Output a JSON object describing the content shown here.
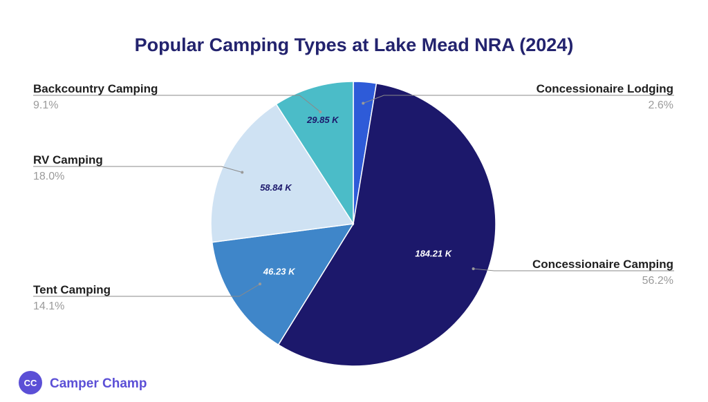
{
  "chart_data": {
    "type": "pie",
    "title": "Popular Camping Types at Lake Mead NRA (2024)",
    "slices": [
      {
        "label": "Concessionaire Lodging",
        "percent_label": "2.6%",
        "value_label": "",
        "value": 8.5,
        "color": "#2e5bd8"
      },
      {
        "label": "Concessionaire Camping",
        "percent_label": "56.2%",
        "value_label": "184.21 K",
        "value": 184.21,
        "color": "#1c186b",
        "value_color": "#ffffff"
      },
      {
        "label": "Tent Camping",
        "percent_label": "14.1%",
        "value_label": "46.23 K",
        "value": 46.23,
        "color": "#3f86c9",
        "value_color": "#ffffff"
      },
      {
        "label": "RV Camping",
        "percent_label": "18.0%",
        "value_label": "58.84 K",
        "value": 58.84,
        "color": "#cfe2f3",
        "value_color": "#1c186b"
      },
      {
        "label": "Backcountry Camping",
        "percent_label": "9.1%",
        "value_label": "29.85 K",
        "value": 29.85,
        "color": "#4bbcc8",
        "value_color": "#1c186b"
      }
    ],
    "legend": "callouts"
  },
  "brand": {
    "name": "Camper Champ",
    "logo_text": "CC"
  }
}
